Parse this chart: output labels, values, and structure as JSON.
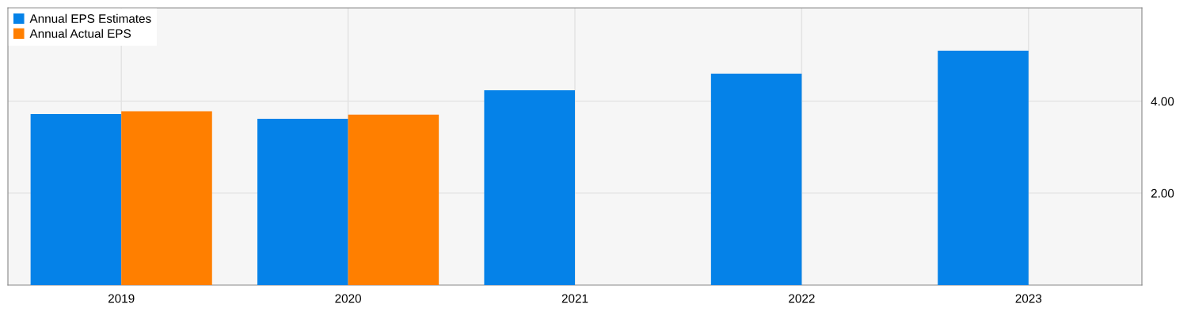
{
  "chart_data": {
    "type": "bar",
    "categories": [
      "2019",
      "2020",
      "2021",
      "2022",
      "2023"
    ],
    "series": [
      {
        "name": "Annual EPS Estimates",
        "color": "#0582e8",
        "values": [
          3.72,
          3.62,
          4.24,
          4.6,
          5.1
        ]
      },
      {
        "name": "Annual Actual EPS",
        "color": "#ff7f00",
        "values": [
          3.78,
          3.71,
          null,
          null,
          null
        ]
      }
    ],
    "ylim": [
      0,
      6.03
    ],
    "yticks": [
      {
        "value": 2,
        "label": "2.00"
      },
      {
        "value": 4,
        "label": "4.00"
      }
    ],
    "grid": true,
    "legend": "top left"
  }
}
